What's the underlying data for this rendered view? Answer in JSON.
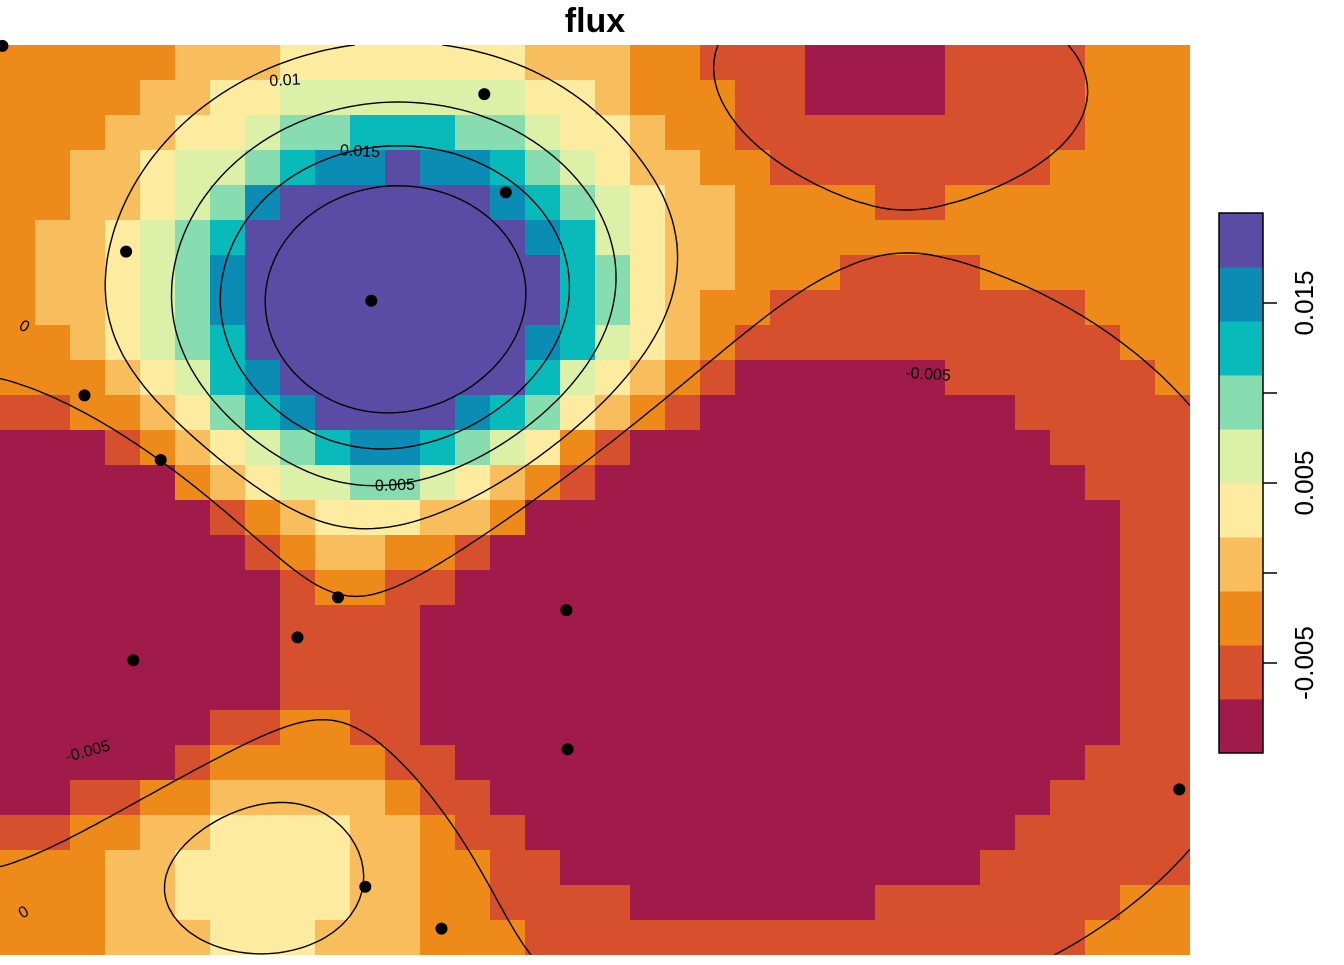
{
  "chart_data": {
    "type": "heatmap",
    "title": "flux",
    "xlabel": "",
    "ylabel": "",
    "grid": false,
    "legend_position": "right",
    "value_range": [
      -0.01,
      0.02
    ],
    "color_breaks": [
      -0.01,
      -0.0075,
      -0.005,
      -0.0025,
      0,
      0.0025,
      0.005,
      0.0075,
      0.01,
      0.0125,
      0.015,
      0.0175,
      0.02
    ],
    "palette": [
      "#A01A4A",
      "#D7502E",
      "#EE8A1A",
      "#F8BD5C",
      "#FDEBA0",
      "#DCF0A8",
      "#88DDB0",
      "#08BABA",
      "#0A8CB4",
      "#5A4CA4"
    ],
    "legend_ticks": [
      {
        "value": -0.005,
        "label": "-0.005"
      },
      {
        "value": 0,
        "label": ""
      },
      {
        "value": 0.005,
        "label": "0.005"
      },
      {
        "value": 0.01,
        "label": ""
      },
      {
        "value": 0.015,
        "label": "0.015"
      }
    ],
    "contour_labels": [
      {
        "level": 0.01,
        "label": "0.01"
      },
      {
        "level": 0.015,
        "label": "0.015"
      },
      {
        "level": 0.005,
        "label": "0.005"
      },
      {
        "level": -0.005,
        "label": "-0.005"
      },
      {
        "level": 0,
        "label": "0"
      },
      {
        "level": -0.005,
        "label": "-0.005"
      },
      {
        "level": 0,
        "label": "0"
      }
    ],
    "field": {
      "sources": [
        {
          "x": 0.335,
          "y": 0.715,
          "amp": 0.0285,
          "sx": 0.13,
          "sy": 0.15
        },
        {
          "x": 0.635,
          "y": 0.36,
          "amp": -0.0215,
          "sx": 0.16,
          "sy": 0.16
        },
        {
          "x": 0.06,
          "y": 0.37,
          "amp": -0.0185,
          "sx": 0.1,
          "sy": 0.12
        },
        {
          "x": 0.22,
          "y": 0.1,
          "amp": 0.0075,
          "sx": 0.1,
          "sy": 0.1
        },
        {
          "x": 0.73,
          "y": 0.95,
          "amp": -0.004,
          "sx": 0.09,
          "sy": 0.06
        }
      ],
      "base": -0.0045
    },
    "points": [
      {
        "x": 0.002,
        "y": 0.999
      },
      {
        "x": 0.407,
        "y": 0.946
      },
      {
        "x": 0.425,
        "y": 0.838
      },
      {
        "x": 0.106,
        "y": 0.773
      },
      {
        "x": 0.312,
        "y": 0.719
      },
      {
        "x": 0.071,
        "y": 0.615
      },
      {
        "x": 0.135,
        "y": 0.544
      },
      {
        "x": 0.284,
        "y": 0.393
      },
      {
        "x": 0.25,
        "y": 0.349
      },
      {
        "x": 0.112,
        "y": 0.324
      },
      {
        "x": 0.476,
        "y": 0.379
      },
      {
        "x": 0.477,
        "y": 0.226
      },
      {
        "x": 0.991,
        "y": 0.182
      },
      {
        "x": 0.307,
        "y": 0.075
      },
      {
        "x": 0.371,
        "y": 0.029
      }
    ]
  }
}
